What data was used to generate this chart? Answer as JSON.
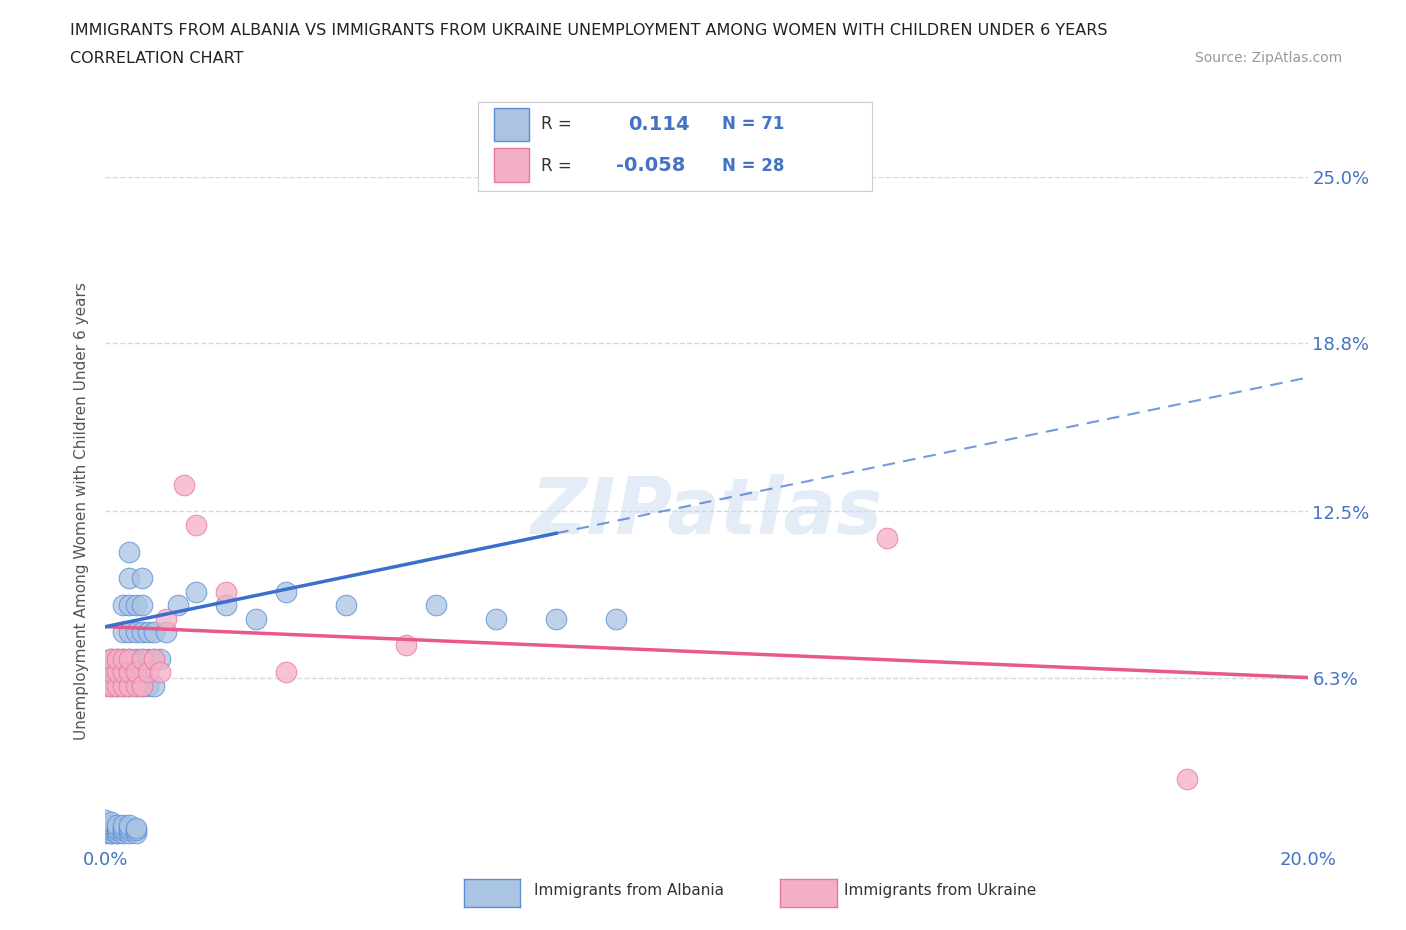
{
  "title_line1": "IMMIGRANTS FROM ALBANIA VS IMMIGRANTS FROM UKRAINE UNEMPLOYMENT AMONG WOMEN WITH CHILDREN UNDER 6 YEARS",
  "title_line2": "CORRELATION CHART",
  "source": "Source: ZipAtlas.com",
  "ylabel": "Unemployment Among Women with Children Under 6 years",
  "xlim": [
    0.0,
    0.2
  ],
  "ylim": [
    0.0,
    0.25
  ],
  "ytick_labels_right": [
    "6.3%",
    "12.5%",
    "18.8%",
    "25.0%"
  ],
  "ytick_values_right": [
    0.063,
    0.125,
    0.188,
    0.25
  ],
  "watermark": "ZIPatlas",
  "albania_color": "#aac4e2",
  "ukraine_color": "#f5afc4",
  "albania_edge_color": "#5b8dd9",
  "ukraine_edge_color": "#e878a0",
  "albania_line_color": "#3a6fce",
  "ukraine_line_color": "#e8588a",
  "albania_R": "0.114",
  "albania_N": "71",
  "ukraine_R": "-0.058",
  "ukraine_N": "28",
  "legend_R_color": "#4472c4",
  "albania_x": [
    0.0,
    0.0,
    0.001,
    0.001,
    0.001,
    0.001,
    0.001,
    0.001,
    0.001,
    0.001,
    0.001,
    0.002,
    0.002,
    0.002,
    0.002,
    0.002,
    0.002,
    0.002,
    0.002,
    0.003,
    0.003,
    0.003,
    0.003,
    0.003,
    0.003,
    0.003,
    0.003,
    0.003,
    0.004,
    0.004,
    0.004,
    0.004,
    0.004,
    0.004,
    0.004,
    0.004,
    0.004,
    0.004,
    0.004,
    0.005,
    0.005,
    0.005,
    0.005,
    0.005,
    0.005,
    0.005,
    0.005,
    0.006,
    0.006,
    0.006,
    0.006,
    0.006,
    0.006,
    0.007,
    0.007,
    0.007,
    0.008,
    0.008,
    0.008,
    0.009,
    0.01,
    0.012,
    0.015,
    0.02,
    0.025,
    0.03,
    0.04,
    0.055,
    0.065,
    0.075,
    0.085
  ],
  "albania_y": [
    0.005,
    0.01,
    0.005,
    0.005,
    0.006,
    0.007,
    0.008,
    0.009,
    0.06,
    0.065,
    0.07,
    0.005,
    0.005,
    0.006,
    0.007,
    0.008,
    0.06,
    0.065,
    0.07,
    0.005,
    0.006,
    0.007,
    0.008,
    0.06,
    0.065,
    0.07,
    0.08,
    0.09,
    0.005,
    0.006,
    0.007,
    0.008,
    0.06,
    0.065,
    0.07,
    0.08,
    0.09,
    0.1,
    0.11,
    0.005,
    0.006,
    0.007,
    0.06,
    0.065,
    0.07,
    0.08,
    0.09,
    0.06,
    0.065,
    0.07,
    0.08,
    0.09,
    0.1,
    0.06,
    0.07,
    0.08,
    0.06,
    0.07,
    0.08,
    0.07,
    0.08,
    0.09,
    0.095,
    0.09,
    0.085,
    0.095,
    0.09,
    0.09,
    0.085,
    0.085,
    0.085
  ],
  "ukraine_x": [
    0.0,
    0.001,
    0.001,
    0.001,
    0.002,
    0.002,
    0.002,
    0.003,
    0.003,
    0.003,
    0.004,
    0.004,
    0.004,
    0.005,
    0.005,
    0.006,
    0.006,
    0.007,
    0.008,
    0.009,
    0.01,
    0.013,
    0.015,
    0.02,
    0.03,
    0.05,
    0.13,
    0.18
  ],
  "ukraine_y": [
    0.06,
    0.06,
    0.065,
    0.07,
    0.06,
    0.065,
    0.07,
    0.06,
    0.065,
    0.07,
    0.06,
    0.065,
    0.07,
    0.06,
    0.065,
    0.06,
    0.07,
    0.065,
    0.07,
    0.065,
    0.085,
    0.135,
    0.12,
    0.095,
    0.065,
    0.075,
    0.115,
    0.025
  ],
  "background_color": "#ffffff",
  "grid_color": "#d0d8e8",
  "title_color": "#222222",
  "axis_label_color": "#4472c4",
  "ylabel_color": "#555555",
  "albania_line_solid_end": 0.075,
  "albania_line_dashed_start": 0.075,
  "albania_line_start_y": 0.082,
  "albania_line_end_y": 0.175,
  "ukraine_line_start_y": 0.082,
  "ukraine_line_end_y": 0.063
}
